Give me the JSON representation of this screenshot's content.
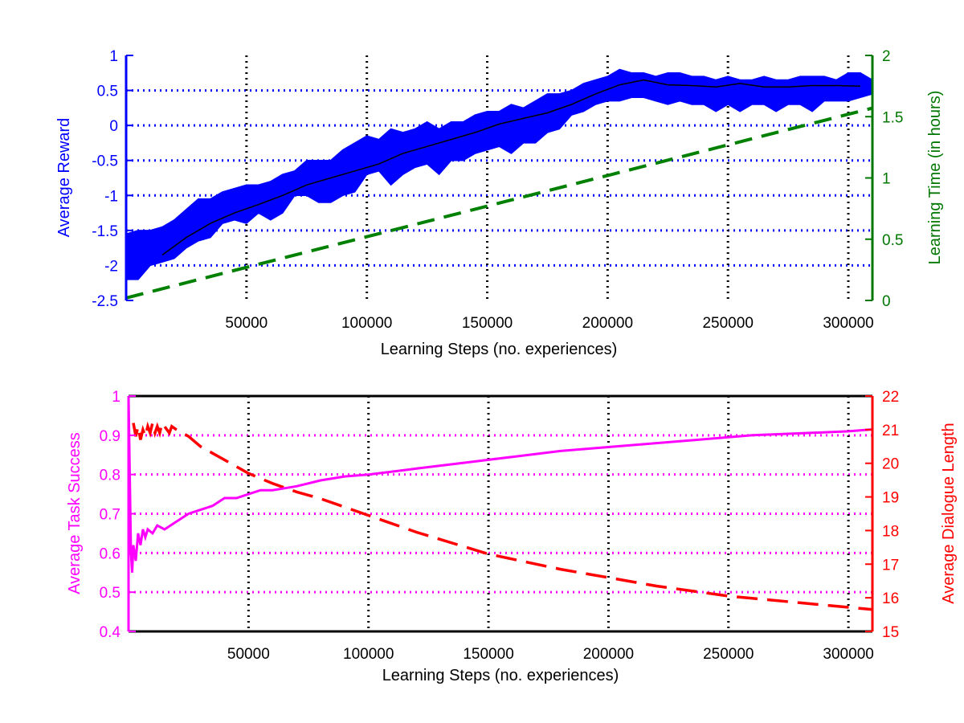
{
  "chart_data": [
    {
      "type": "line",
      "xlabel": "Learning Steps (no. experiences)",
      "ylabel": "Average Reward",
      "y2label": "Learning Time (in hours)",
      "xlim": [
        0,
        310000
      ],
      "ylim": [
        -2.5,
        1
      ],
      "y2lim": [
        0,
        2
      ],
      "xticks": [
        50000,
        100000,
        150000,
        200000,
        250000,
        300000
      ],
      "yticks": [
        -2.5,
        -2,
        -1.5,
        -1,
        -0.5,
        0,
        0.5,
        1
      ],
      "y2ticks": [
        0,
        0.5,
        1,
        1.5,
        2
      ],
      "grid": true,
      "colors": {
        "left_axis": "#0000ff",
        "right_axis": "#007700",
        "band": "#0000ff",
        "mean": "#000000",
        "time": "#008000"
      },
      "series": [
        {
          "axis": "left",
          "style": "band",
          "x": [
            0,
            5000,
            10000,
            15000,
            20000,
            25000,
            30000,
            35000,
            40000,
            45000,
            50000,
            55000,
            60000,
            65000,
            70000,
            75000,
            80000,
            85000,
            90000,
            95000,
            100000,
            105000,
            110000,
            115000,
            120000,
            125000,
            130000,
            135000,
            140000,
            145000,
            150000,
            155000,
            160000,
            165000,
            170000,
            175000,
            180000,
            185000,
            190000,
            195000,
            200000,
            205000,
            210000,
            215000,
            220000,
            225000,
            230000,
            235000,
            240000,
            245000,
            250000,
            255000,
            260000,
            265000,
            270000,
            275000,
            280000,
            285000,
            290000,
            295000,
            300000,
            305000,
            310000
          ],
          "upper": [
            -1.55,
            -1.5,
            -1.5,
            -1.45,
            -1.35,
            -1.2,
            -1.05,
            -1.05,
            -0.95,
            -0.9,
            -0.85,
            -0.85,
            -0.8,
            -0.7,
            -0.65,
            -0.5,
            -0.5,
            -0.5,
            -0.35,
            -0.25,
            -0.15,
            -0.2,
            -0.05,
            -0.1,
            -0.05,
            0.05,
            -0.05,
            0.05,
            0.05,
            0.15,
            0.2,
            0.2,
            0.3,
            0.25,
            0.35,
            0.45,
            0.45,
            0.5,
            0.6,
            0.65,
            0.7,
            0.8,
            0.75,
            0.75,
            0.7,
            0.75,
            0.75,
            0.7,
            0.7,
            0.65,
            0.7,
            0.65,
            0.65,
            0.7,
            0.65,
            0.65,
            0.7,
            0.7,
            0.7,
            0.65,
            0.75,
            0.75,
            0.65
          ],
          "lower": [
            -2.2,
            -2.2,
            -2.0,
            -1.95,
            -1.9,
            -1.75,
            -1.65,
            -1.6,
            -1.4,
            -1.35,
            -1.4,
            -1.25,
            -1.35,
            -1.25,
            -1.0,
            -1.0,
            -1.1,
            -1.1,
            -1.0,
            -0.95,
            -0.7,
            -0.65,
            -0.85,
            -0.7,
            -0.6,
            -0.55,
            -0.7,
            -0.5,
            -0.5,
            -0.4,
            -0.35,
            -0.3,
            -0.4,
            -0.25,
            -0.25,
            -0.1,
            -0.05,
            0.15,
            0.2,
            0.3,
            0.35,
            0.35,
            0.4,
            0.4,
            0.35,
            0.3,
            0.35,
            0.3,
            0.3,
            0.2,
            0.3,
            0.2,
            0.3,
            0.3,
            0.2,
            0.3,
            0.3,
            0.2,
            0.35,
            0.35,
            0.35,
            0.4,
            0.45
          ]
        },
        {
          "axis": "left",
          "style": "solid-thin",
          "x": [
            15000,
            25000,
            35000,
            45000,
            55000,
            65000,
            75000,
            85000,
            95000,
            105000,
            115000,
            125000,
            135000,
            145000,
            155000,
            165000,
            175000,
            185000,
            195000,
            205000,
            215000,
            225000,
            235000,
            245000,
            255000,
            265000,
            275000,
            285000,
            295000,
            305000
          ],
          "y": [
            -1.85,
            -1.6,
            -1.4,
            -1.25,
            -1.13,
            -1.0,
            -0.85,
            -0.75,
            -0.65,
            -0.55,
            -0.4,
            -0.3,
            -0.2,
            -0.1,
            0.02,
            0.1,
            0.18,
            0.3,
            0.45,
            0.58,
            0.65,
            0.58,
            0.57,
            0.55,
            0.6,
            0.55,
            0.55,
            0.57,
            0.57,
            0.56
          ]
        },
        {
          "axis": "right",
          "style": "dashed",
          "x": [
            0,
            310000
          ],
          "y": [
            0.02,
            1.57
          ]
        }
      ]
    },
    {
      "type": "line",
      "xlabel": "Learning Steps (no. experiences)",
      "ylabel": "Average Task Success",
      "y2label": "Average Dialogue Length",
      "xlim": [
        0,
        310000
      ],
      "ylim": [
        0.4,
        1
      ],
      "y2lim": [
        15,
        22
      ],
      "xticks": [
        50000,
        100000,
        150000,
        200000,
        250000,
        300000
      ],
      "yticks": [
        0.4,
        0.5,
        0.6,
        0.7,
        0.8,
        0.9,
        1
      ],
      "y2ticks": [
        15,
        16,
        17,
        18,
        19,
        20,
        21,
        22
      ],
      "grid": true,
      "colors": {
        "left_axis": "#ff00ff",
        "right_axis": "#ff0000",
        "success": "#ff00ff",
        "length": "#ff0000"
      },
      "series": [
        {
          "axis": "left",
          "style": "solid",
          "x": [
            0,
            500,
            1000,
            1500,
            2000,
            3000,
            4000,
            5000,
            6000,
            7000,
            8000,
            10000,
            12000,
            15000,
            20000,
            25000,
            30000,
            35000,
            40000,
            45000,
            50000,
            55000,
            60000,
            65000,
            70000,
            80000,
            90000,
            100000,
            120000,
            140000,
            160000,
            180000,
            200000,
            220000,
            240000,
            260000,
            280000,
            300000,
            310000
          ],
          "y": [
            1.0,
            0.8,
            0.6,
            0.55,
            0.62,
            0.58,
            0.65,
            0.62,
            0.66,
            0.64,
            0.66,
            0.65,
            0.67,
            0.66,
            0.68,
            0.7,
            0.71,
            0.72,
            0.74,
            0.74,
            0.75,
            0.76,
            0.76,
            0.765,
            0.77,
            0.785,
            0.795,
            0.8,
            0.815,
            0.83,
            0.845,
            0.86,
            0.87,
            0.88,
            0.89,
            0.9,
            0.905,
            0.91,
            0.915
          ]
        },
        {
          "axis": "right",
          "style": "dashed",
          "x": [
            2000,
            3000,
            4000,
            5000,
            6000,
            7000,
            8000,
            9000,
            10000,
            11000,
            12000,
            13000,
            14000,
            15000,
            16000,
            17000,
            18000,
            20000,
            25000,
            30000,
            40000,
            50000,
            60000,
            70000,
            80000,
            100000,
            120000,
            150000,
            180000,
            200000,
            220000,
            250000,
            280000,
            310000
          ],
          "y": [
            21.2,
            20.8,
            21.1,
            20.7,
            21.0,
            20.8,
            21.1,
            20.9,
            21.2,
            20.9,
            21.1,
            20.9,
            21.2,
            21.1,
            21.0,
            20.9,
            21.1,
            21.0,
            20.8,
            20.5,
            20.1,
            19.7,
            19.4,
            19.15,
            18.95,
            18.45,
            17.95,
            17.3,
            16.85,
            16.6,
            16.35,
            16.05,
            15.85,
            15.65
          ]
        }
      ]
    }
  ]
}
